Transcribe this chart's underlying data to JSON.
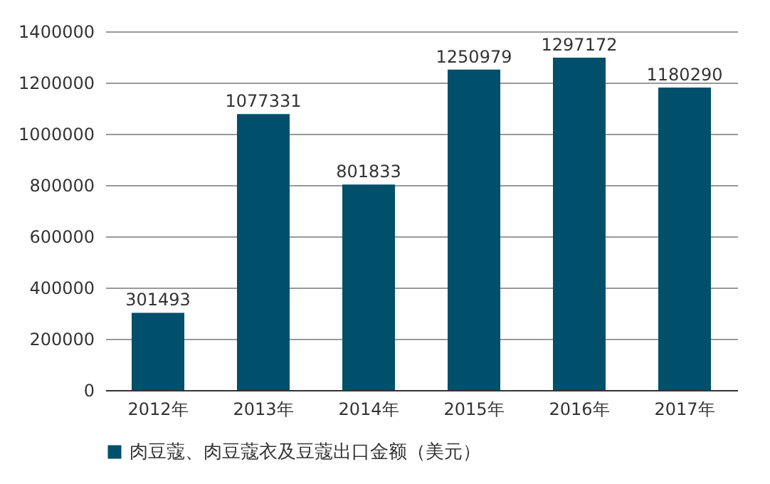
{
  "chart_data": {
    "type": "bar",
    "categories": [
      "2012年",
      "2013年",
      "2014年",
      "2015年",
      "2016年",
      "2017年"
    ],
    "series": [
      {
        "name": "肉豆蔻、肉豆蔻衣及豆蔻出口金额（美元）",
        "color": "#004f6b",
        "values": [
          301493,
          1077331,
          801833,
          1250979,
          1297172,
          1180290
        ]
      }
    ],
    "ylim": [
      0,
      1400000
    ],
    "yticks": [
      0,
      200000,
      400000,
      600000,
      800000,
      1000000,
      1200000,
      1400000
    ],
    "grid": "y",
    "legend": "bottom",
    "data_labels": true
  }
}
